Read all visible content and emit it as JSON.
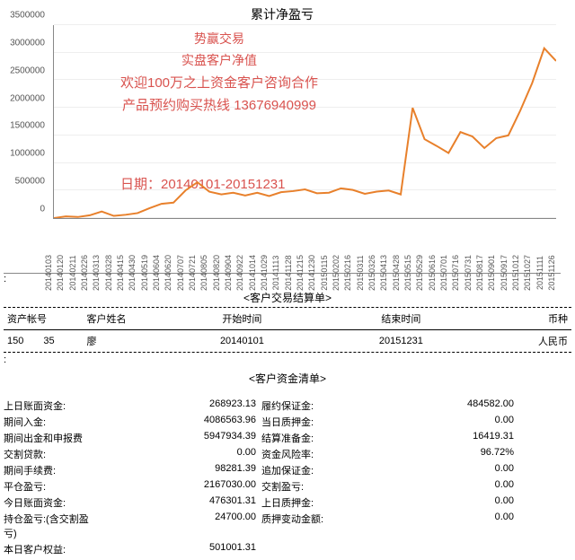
{
  "chart": {
    "type": "line",
    "title": "累计净盈亏",
    "line_color": "#e8802b",
    "line_width": 2,
    "grid_color": "#eeeeee",
    "axis_color": "#888888",
    "background_color": "#ffffff",
    "title_fontsize": 14,
    "tick_fontsize": 10,
    "ylim": [
      0,
      3500000
    ],
    "ytick_step": 500000,
    "y_ticks": [
      "0",
      "500000",
      "1000000",
      "1500000",
      "2000000",
      "2500000",
      "3000000",
      "3500000"
    ],
    "x_labels": [
      "20140103",
      "20140120",
      "20140211",
      "20140226",
      "20140313",
      "20140328",
      "20140415",
      "20140430",
      "20140519",
      "20140604",
      "20140620",
      "20140707",
      "20140721",
      "20140805",
      "20140820",
      "20140904",
      "20140922",
      "20141014",
      "20141029",
      "20141113",
      "20141128",
      "20141215",
      "20141230",
      "20150115",
      "20150202",
      "20150216",
      "20150311",
      "20150326",
      "20150413",
      "20150428",
      "20150515",
      "20150529",
      "20150616",
      "20150701",
      "20150716",
      "20150731",
      "20150817",
      "20150901",
      "20150917",
      "20151012",
      "20151027",
      "20151111",
      "20151126"
    ],
    "series": [
      0,
      30000,
      20000,
      50000,
      120000,
      40000,
      60000,
      90000,
      180000,
      260000,
      280000,
      500000,
      650000,
      480000,
      430000,
      460000,
      410000,
      460000,
      400000,
      470000,
      490000,
      520000,
      450000,
      460000,
      540000,
      510000,
      440000,
      480000,
      500000,
      430000,
      2000000,
      1430000,
      1310000,
      1180000,
      1560000,
      1480000,
      1270000,
      1450000,
      1500000,
      1950000,
      2450000,
      3080000,
      2850000
    ],
    "overlay": {
      "color": "#d9534f",
      "fontsize": 14,
      "lines": [
        "势赢交易",
        "实盘客户净值",
        "欢迎100万之上资金客户咨询合作",
        "产品预约购买热线 13676940999"
      ],
      "date_line": "日期：20140101-20151231"
    }
  },
  "settlement": {
    "title": "<客户交易结算单>",
    "headers": [
      "资产帐号",
      "客户姓名",
      "开始时间",
      "结束时间",
      "币种"
    ],
    "row": {
      "acct_prefix": "150",
      "acct_suffix": "35",
      "name_prefix": "廖",
      "start": "20140101",
      "end": "20151231",
      "currency": "人民币"
    }
  },
  "funds": {
    "title": "<客户资金清单>",
    "left": [
      {
        "label": "上日账面资金:",
        "val": "268923.13"
      },
      {
        "label": "期间入金:",
        "val": "4086563.96"
      },
      {
        "label": "期间出金和申报费",
        "val": "5947934.39"
      },
      {
        "label": "交割贷款:",
        "val": "0.00"
      },
      {
        "label": "期间手续费:",
        "val": "98281.39"
      },
      {
        "label": "平仓盈亏:",
        "val": "2167030.00"
      },
      {
        "label": "今日账面资金:",
        "val": "476301.31"
      },
      {
        "label": "持仓盈亏:(含交割盈亏)",
        "val": "24700.00"
      },
      {
        "label": "本日客户权益:",
        "val": "501001.31"
      }
    ],
    "right": [
      {
        "label": "履约保证金:",
        "val": "484582.00"
      },
      {
        "label": "当日质押金:",
        "val": "0.00"
      },
      {
        "label": "结算准备金:",
        "val": "16419.31"
      },
      {
        "label": "资金风险率:",
        "val": "96.72%"
      },
      {
        "label": "追加保证金:",
        "val": "0.00"
      },
      {
        "label": "交割盈亏:",
        "val": "0.00"
      },
      {
        "label": "上日质押金:",
        "val": "0.00"
      },
      {
        "label": "质押变动金额:",
        "val": "0.00"
      }
    ]
  }
}
